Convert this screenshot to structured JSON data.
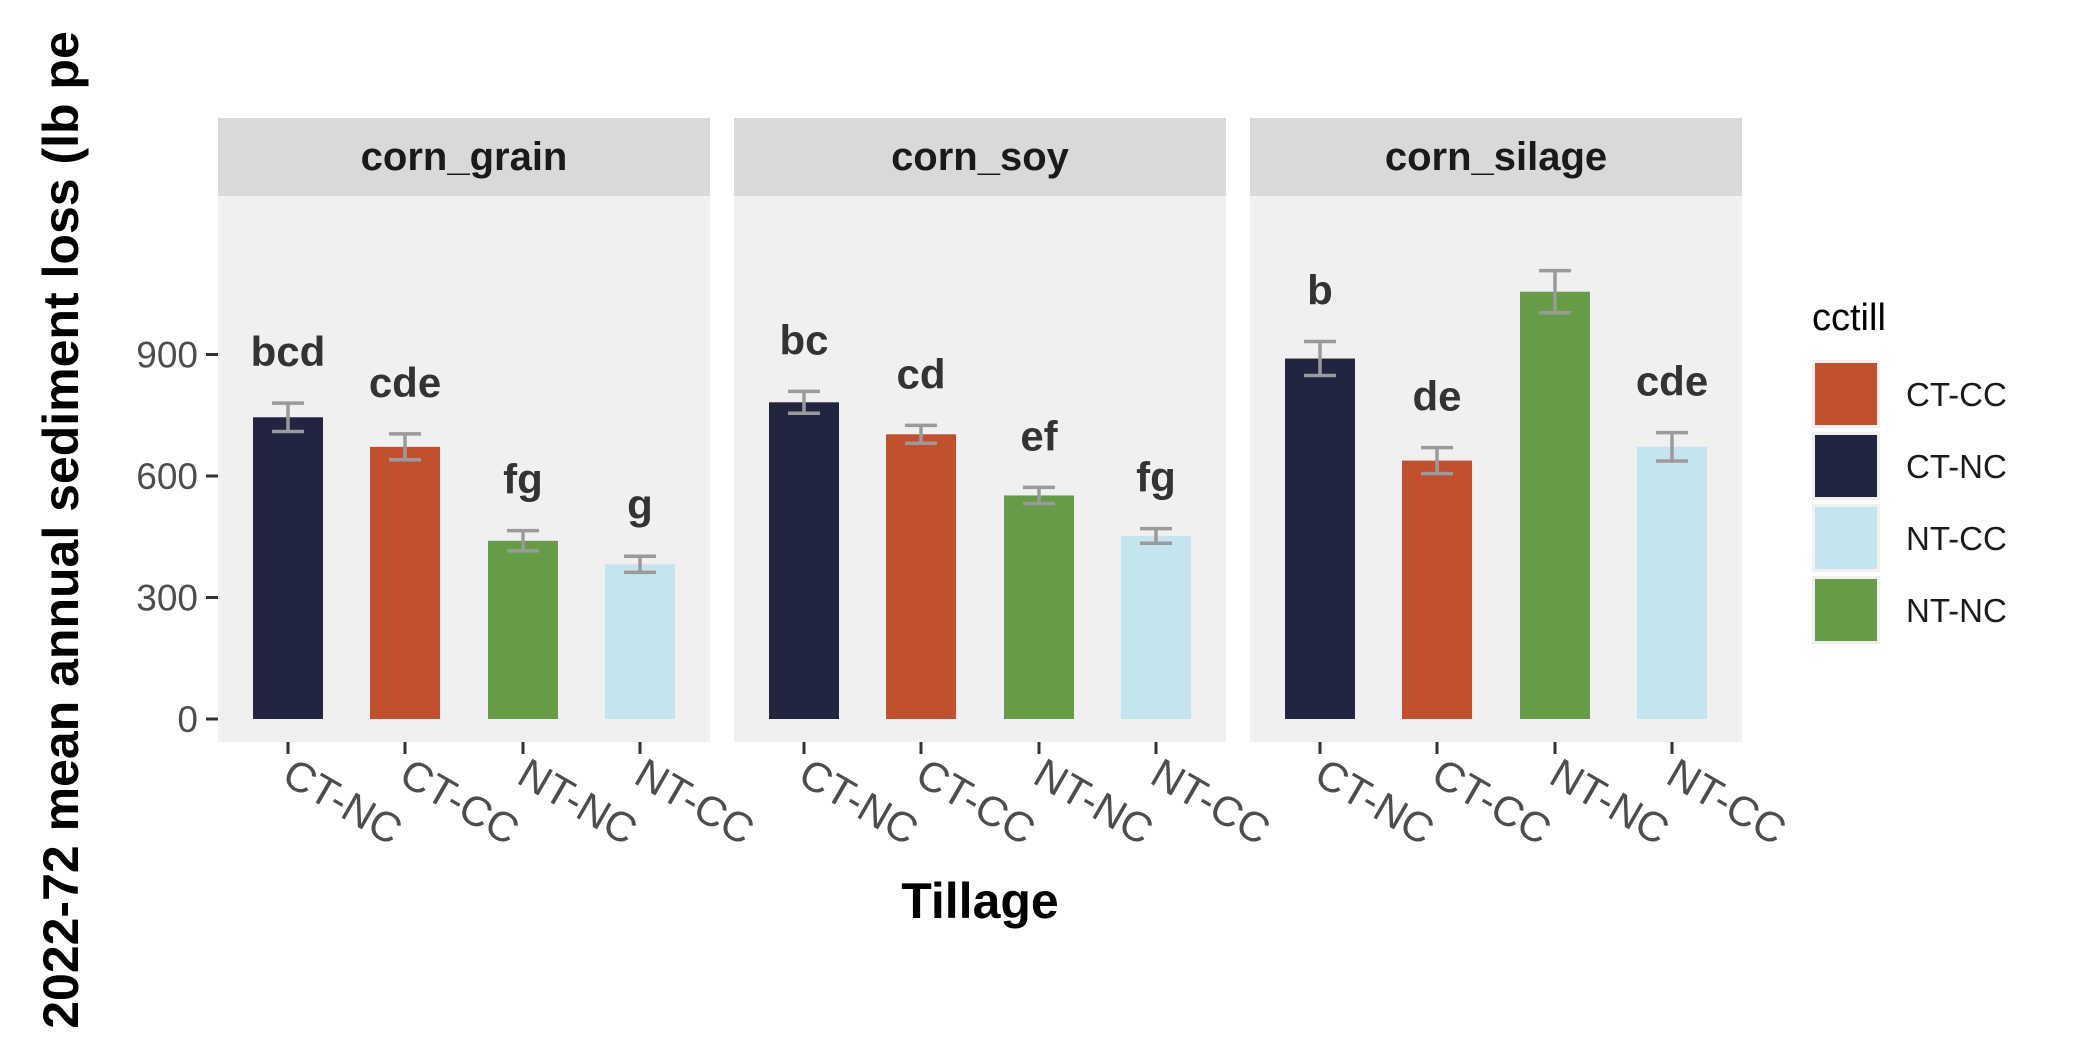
{
  "chart_data": {
    "type": "bar",
    "ylabel": "2022-72 mean annual sediment loss (lb pe",
    "xlabel": "Tillage",
    "ylim": [
      0,
      1150
    ],
    "yticks": [
      0,
      300,
      600,
      900
    ],
    "categories": [
      "CT-NC",
      "CT-CC",
      "NT-NC",
      "NT-CC"
    ],
    "legend": {
      "title": "cctill",
      "placement": "right",
      "entries": [
        "CT-CC",
        "CT-NC",
        "NT-CC",
        "NT-NC"
      ]
    },
    "colors": {
      "CT-CC": "#c1502e",
      "CT-NC": "#222540",
      "NT-CC": "#c4e4ee",
      "NT-NC": "#669b47"
    },
    "panels": [
      {
        "name": "corn_grain",
        "values": [
          745,
          672,
          440,
          382
        ],
        "errors": [
          35,
          32,
          25,
          20
        ],
        "labels": [
          "bcd",
          "cde",
          "fg",
          "g"
        ]
      },
      {
        "name": "corn_soy",
        "values": [
          782,
          703,
          552,
          452
        ],
        "errors": [
          27,
          22,
          20,
          18
        ],
        "labels": [
          "bc",
          "cd",
          "ef",
          "fg"
        ]
      },
      {
        "name": "corn_silage",
        "values": [
          890,
          638,
          1055,
          672
        ],
        "errors": [
          42,
          32,
          52,
          35
        ],
        "labels": [
          "b",
          "de",
          "",
          "cde"
        ]
      }
    ]
  }
}
